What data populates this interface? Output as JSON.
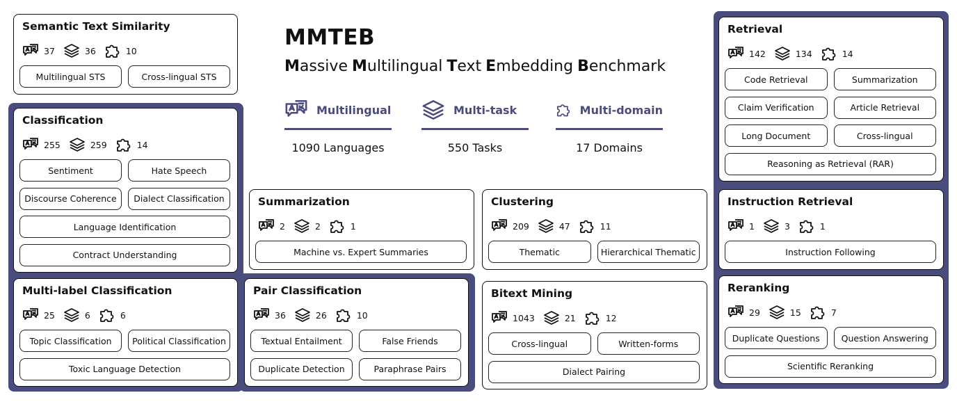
{
  "header": {
    "title": "MMTEB",
    "subtitle": [
      "Massive",
      "Multilingual",
      "Text",
      "Embedding",
      "Benchmark"
    ]
  },
  "features": [
    {
      "label": "Multilingual",
      "stat": "1090 Languages"
    },
    {
      "label": "Multi-task",
      "stat": "550 Tasks"
    },
    {
      "label": "Multi-domain",
      "stat": "17 Domains"
    }
  ],
  "cards": [
    {
      "title": "Semantic Text Similarity",
      "languages": 37,
      "tasks": 36,
      "domains": 10,
      "tags": [
        "Multilingual STS",
        "Cross-lingual STS"
      ]
    },
    {
      "title": "Classification",
      "languages": 255,
      "tasks": 259,
      "domains": 14,
      "tags": [
        "Sentiment",
        "Hate Speech",
        "Discourse Coherence",
        "Dialect Classification",
        "Language Identification",
        "Contract Understanding"
      ]
    },
    {
      "title": "Multi-label Classification",
      "languages": 25,
      "tasks": 6,
      "domains": 6,
      "tags": [
        "Topic Classification",
        "Political Classification",
        "Toxic Language  Detection"
      ]
    },
    {
      "title": "Summarization",
      "languages": 2,
      "tasks": 2,
      "domains": 1,
      "tags": [
        "Machine vs. Expert Summaries"
      ]
    },
    {
      "title": "Pair Classification",
      "languages": 36,
      "tasks": 26,
      "domains": 10,
      "tags": [
        "Textual Entailment",
        "False Friends",
        "Duplicate Detection",
        "Paraphrase Pairs"
      ]
    },
    {
      "title": "Clustering",
      "languages": 209,
      "tasks": 47,
      "domains": 11,
      "tags": [
        "Thematic",
        "Hierarchical Thematic"
      ]
    },
    {
      "title": "Bitext Mining",
      "languages": 1043,
      "tasks": 21,
      "domains": 12,
      "tags": [
        "Cross-lingual",
        "Written-forms",
        "Dialect Pairing"
      ]
    },
    {
      "title": "Retrieval",
      "languages": 142,
      "tasks": 134,
      "domains": 14,
      "tags": [
        "Code Retrieval",
        "Summarization",
        "Claim Verification",
        "Article Retrieval",
        "Long Document",
        "Cross-lingual",
        "Reasoning as Retrieval (RAR)"
      ]
    },
    {
      "title": "Instruction Retrieval",
      "languages": 1,
      "tasks": 3,
      "domains": 1,
      "tags": [
        "Instruction Following"
      ]
    },
    {
      "title": "Reranking",
      "languages": 29,
      "tasks": 15,
      "domains": 7,
      "tags": [
        "Duplicate Questions",
        "Question Answering",
        "Scientific Reranking"
      ]
    }
  ]
}
